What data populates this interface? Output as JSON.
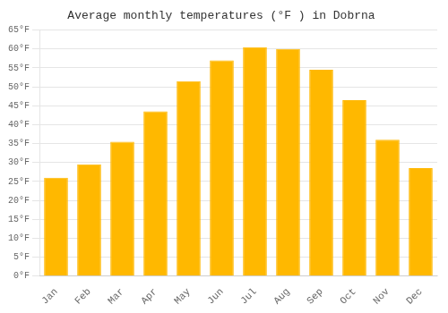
{
  "chart_data": {
    "type": "bar",
    "title": "Average monthly temperatures (°F ) in Dobrna",
    "categories": [
      "Jan",
      "Feb",
      "Mar",
      "Apr",
      "May",
      "Jun",
      "Jul",
      "Aug",
      "Sep",
      "Oct",
      "Nov",
      "Dec"
    ],
    "values": [
      26,
      29.5,
      35.5,
      43.5,
      51.5,
      57,
      60.5,
      60,
      54.5,
      46.5,
      36,
      28.5
    ],
    "color": "#FFB800",
    "ylim": [
      0,
      65
    ],
    "yticks": [
      {
        "value": 0,
        "label": "0°F"
      },
      {
        "value": 5,
        "label": "5°F"
      },
      {
        "value": 10,
        "label": "10°F"
      },
      {
        "value": 15,
        "label": "15°F"
      },
      {
        "value": 20,
        "label": "20°F"
      },
      {
        "value": 25,
        "label": "25°F"
      },
      {
        "value": 30,
        "label": "30°F"
      },
      {
        "value": 35,
        "label": "35°F"
      },
      {
        "value": 40,
        "label": "40°F"
      },
      {
        "value": 45,
        "label": "45°F"
      },
      {
        "value": 50,
        "label": "50°F"
      },
      {
        "value": 55,
        "label": "55°F"
      },
      {
        "value": 60,
        "label": "60°F"
      },
      {
        "value": 65,
        "label": "65°F"
      }
    ],
    "grid": true
  }
}
